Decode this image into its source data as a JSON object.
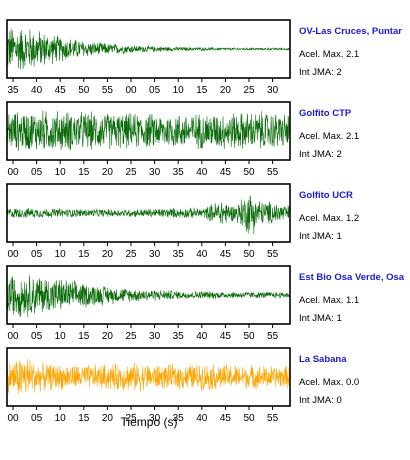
{
  "chart_data": [
    {
      "type": "line",
      "station": "OV-Las Cruces, Puntar",
      "accel_label": "Acel. Max. 2.1",
      "jma_label": "Int JMA: 2",
      "ticks": [
        "35",
        "40",
        "45",
        "50",
        "55",
        "00",
        "05",
        "10",
        "15",
        "20",
        "25",
        "30"
      ],
      "tick_start_s": 35,
      "color": "#0a6b0a",
      "envelope": [
        [
          0,
          0.95
        ],
        [
          0.08,
          0.9
        ],
        [
          0.18,
          0.55
        ],
        [
          0.3,
          0.3
        ],
        [
          0.45,
          0.15
        ],
        [
          0.6,
          0.08
        ],
        [
          0.8,
          0.05
        ],
        [
          1,
          0.04
        ]
      ]
    },
    {
      "type": "line",
      "station": "Golfito CTP",
      "accel_label": "Acel. Max. 2.1",
      "jma_label": "Int JMA: 2",
      "ticks": [
        "00",
        "05",
        "10",
        "15",
        "20",
        "25",
        "30",
        "35",
        "40",
        "45",
        "50",
        "55"
      ],
      "tick_start_s": 0,
      "color": "#0a6b0a",
      "envelope": [
        [
          0,
          0.8
        ],
        [
          0.15,
          0.85
        ],
        [
          0.35,
          0.75
        ],
        [
          0.55,
          0.7
        ],
        [
          0.75,
          0.75
        ],
        [
          0.9,
          0.8
        ],
        [
          1,
          0.7
        ]
      ]
    },
    {
      "type": "line",
      "station": "Golfito UCR",
      "accel_label": "Acel. Max. 1.2",
      "jma_label": "Int JMA: 1",
      "ticks": [
        "00",
        "05",
        "10",
        "15",
        "20",
        "25",
        "30",
        "35",
        "40",
        "45",
        "50",
        "55"
      ],
      "tick_start_s": 0,
      "color": "#0a6b0a",
      "envelope": [
        [
          0,
          0.22
        ],
        [
          0.2,
          0.18
        ],
        [
          0.4,
          0.15
        ],
        [
          0.58,
          0.2
        ],
        [
          0.7,
          0.22
        ],
        [
          0.76,
          0.6
        ],
        [
          0.8,
          0.3
        ],
        [
          0.86,
          0.95
        ],
        [
          0.9,
          0.5
        ],
        [
          0.95,
          0.45
        ],
        [
          1,
          0.3
        ]
      ]
    },
    {
      "type": "line",
      "station": "Est Bio Osa Verde, Osa",
      "accel_label": "Acel. Max. 1.1",
      "jma_label": "Int JMA: 1",
      "ticks": [
        "00",
        "05",
        "10",
        "15",
        "20",
        "25",
        "30",
        "35",
        "40",
        "45",
        "50",
        "55"
      ],
      "tick_start_s": 0,
      "color": "#0a6b0a",
      "envelope": [
        [
          0,
          0.9
        ],
        [
          0.1,
          0.85
        ],
        [
          0.25,
          0.55
        ],
        [
          0.4,
          0.3
        ],
        [
          0.6,
          0.18
        ],
        [
          0.8,
          0.14
        ],
        [
          1,
          0.12
        ]
      ]
    },
    {
      "type": "line",
      "station": "La Sabana",
      "accel_label": "Acel. Max. 0.0",
      "jma_label": "Int JMA: 0",
      "ticks": [
        "00",
        "05",
        "10",
        "15",
        "20",
        "25",
        "30",
        "35",
        "40",
        "45",
        "50",
        "55"
      ],
      "tick_start_s": 0,
      "color": "#ffa500",
      "envelope": [
        [
          0,
          0.6
        ],
        [
          0.06,
          0.95
        ],
        [
          0.12,
          0.55
        ],
        [
          0.3,
          0.5
        ],
        [
          0.45,
          0.6
        ],
        [
          0.55,
          0.5
        ],
        [
          0.7,
          0.55
        ],
        [
          0.85,
          0.5
        ],
        [
          1,
          0.45
        ]
      ]
    }
  ],
  "xlabel": "Tiempo (s)"
}
